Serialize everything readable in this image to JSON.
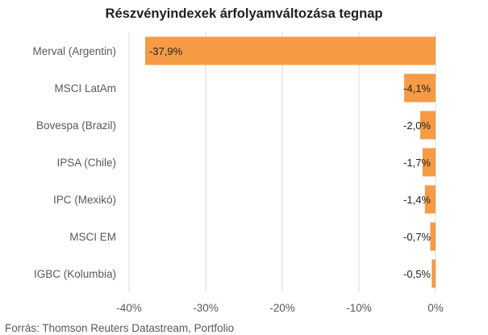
{
  "chart_data": {
    "type": "bar",
    "orientation": "horizontal",
    "title": "Részvényindexek árfolyamváltozása tegnap",
    "source": "Forrás: Thomson Reuters Datastream, Portfolio",
    "categories": [
      "Merval (Argentin)",
      "MSCI LatAm",
      "Bovespa (Brazil)",
      "IPSA (Chile)",
      "IPC (Mexikó)",
      "MSCI EM",
      "IGBC (Kolumbia)"
    ],
    "values": [
      -37.9,
      -4.1,
      -2.0,
      -1.7,
      -1.4,
      -0.7,
      -0.5
    ],
    "data_labels": [
      "-37,9%",
      "-4,1%",
      "-2,0%",
      "-1,7%",
      "-1,4%",
      "-0,7%",
      "-0,5%"
    ],
    "xlim": [
      -40,
      0
    ],
    "xticks": [
      -40,
      -30,
      -20,
      -10,
      0
    ],
    "xtick_labels": [
      "-40%",
      "-30%",
      "-20%",
      "-10%",
      "0%"
    ],
    "xlabel": "",
    "ylabel": "",
    "grid": true,
    "legend": "none",
    "bar_color": "#F59B45",
    "grid_color": "#D9D9D9"
  }
}
